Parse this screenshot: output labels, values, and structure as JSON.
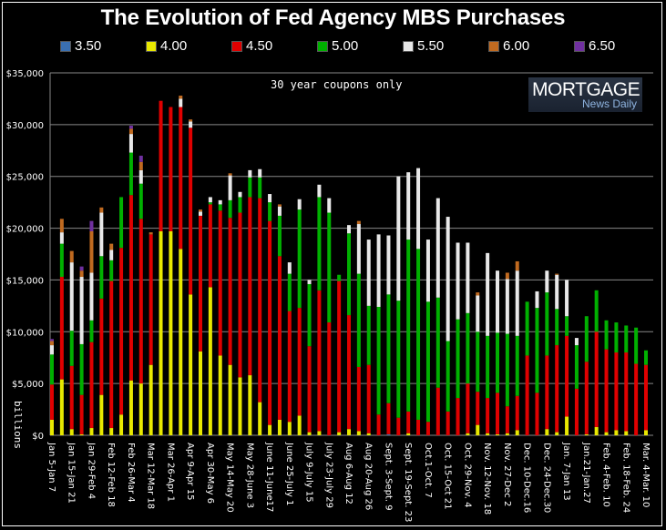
{
  "chart_data": {
    "type": "bar",
    "stacked": true,
    "title": "The Evolution of Fed Agency MBS Purchases",
    "annotation": "30 year coupons only",
    "watermark": {
      "main": "MORTGAGE",
      "sub": "News Daily"
    },
    "xlabel": "",
    "ylabel": "billions",
    "ylim": [
      0,
      35000
    ],
    "yticks": [
      "$0",
      "$5,000",
      "$10,000",
      "$15,000",
      "$20,000",
      "$25,000",
      "$30,000",
      "$35,000"
    ],
    "ytick_values": [
      0,
      5000,
      10000,
      15000,
      20000,
      25000,
      30000,
      35000
    ],
    "grid": true,
    "legend_position": "top",
    "colors": {
      "3.50": "#3a6fb0",
      "4.00": "#e8e800",
      "4.50": "#e00000",
      "5.00": "#00b000",
      "5.50": "#e8e8e8",
      "6.00": "#c06a20",
      "6.50": "#7030a0"
    },
    "series_names": [
      "3.50",
      "4.00",
      "4.50",
      "5.00",
      "5.50",
      "6.00",
      "6.50"
    ],
    "xtick_labels": [
      "Jan 5-Jan 7",
      "Jan 15-Jan 21",
      "Jan 29-Feb 4",
      "Feb 12-Feb 18",
      "Feb 26-Mar 4",
      "Mar 12-Mar 18",
      "Mar 26-Apr 1",
      "Apr 9-Apr 15",
      "Apr 30-May 6",
      "May 14-May 20",
      "May 28-June 3",
      "June 11-June17",
      "June 25-July 1",
      "July 9-July 15",
      "July 23-July 29",
      "Aug 6-Aug 12",
      "Aug 20-Aug 26",
      "Sept. 3-Sept. 9",
      "Sept. 19-Sept. 23",
      "Oct.1-Oct. 7",
      "Oct. 15-Oct 21",
      "Oct. 29-Nov. 4",
      "Nov. 12-Nov. 18",
      "Nov. 27-Dec 2",
      "Dec. 10-Dec.16",
      "Dec. 24-Dec.30",
      "Jan. 7-Jan 13",
      "Jan.21-Jan.27",
      "Feb. 4-Feb. 10",
      "Feb. 18-Feb. 24",
      "Mar. 4-Mar. 10"
    ],
    "bars": [
      [
        0,
        1500,
        3400,
        2900,
        900,
        400,
        200
      ],
      [
        0,
        5400,
        9900,
        3200,
        1100,
        1300,
        0
      ],
      [
        0,
        600,
        6100,
        3400,
        6600,
        1100,
        0
      ],
      [
        0,
        100,
        3800,
        4900,
        6500,
        600,
        400
      ],
      [
        0,
        700,
        8300,
        2100,
        4600,
        4000,
        1000
      ],
      [
        0,
        3900,
        9300,
        4100,
        4200,
        500,
        0
      ],
      [
        0,
        700,
        14200,
        2000,
        1000,
        600,
        0
      ],
      [
        0,
        2000,
        16100,
        4900,
        0,
        0,
        0
      ],
      [
        0,
        5300,
        17900,
        4100,
        1800,
        500,
        300
      ],
      [
        0,
        5000,
        15900,
        3400,
        1300,
        800,
        600
      ],
      [
        0,
        6800,
        12600,
        0,
        0,
        200,
        0
      ],
      [
        0,
        19700,
        12600,
        0,
        0,
        0,
        0
      ],
      [
        0,
        19700,
        12000,
        0,
        0,
        0,
        0
      ],
      [
        0,
        18000,
        13700,
        0,
        800,
        300,
        0
      ],
      [
        0,
        13600,
        16100,
        0,
        600,
        200,
        0
      ],
      [
        0,
        8100,
        13100,
        0,
        400,
        200,
        0
      ],
      [
        0,
        14300,
        8000,
        200,
        500,
        0,
        0
      ],
      [
        0,
        7700,
        14000,
        600,
        400,
        0,
        0
      ],
      [
        0,
        6800,
        14200,
        1700,
        2400,
        200,
        0
      ],
      [
        0,
        5600,
        15900,
        1500,
        500,
        0,
        0
      ],
      [
        0,
        5800,
        17200,
        1900,
        700,
        0,
        0
      ],
      [
        0,
        3200,
        19700,
        2000,
        800,
        0,
        0
      ],
      [
        0,
        1000,
        19700,
        1800,
        800,
        0,
        0
      ],
      [
        0,
        1500,
        15800,
        3900,
        900,
        200,
        0
      ],
      [
        0,
        1300,
        10700,
        3600,
        1100,
        0,
        0
      ],
      [
        0,
        1900,
        10400,
        9500,
        1000,
        0,
        0
      ],
      [
        0,
        300,
        8300,
        6000,
        400,
        0,
        0
      ],
      [
        0,
        400,
        13600,
        9000,
        1200,
        0,
        0
      ],
      [
        0,
        0,
        10900,
        10600,
        1400,
        0,
        0
      ],
      [
        0,
        300,
        14600,
        600,
        0,
        0,
        0
      ],
      [
        0,
        600,
        11000,
        7900,
        800,
        0,
        0
      ],
      [
        0,
        400,
        6200,
        9000,
        4800,
        300,
        0
      ],
      [
        0,
        200,
        6600,
        5700,
        6400,
        0,
        0
      ],
      [
        0,
        0,
        2000,
        10400,
        7000,
        0,
        0
      ],
      [
        100,
        0,
        3000,
        10500,
        5700,
        0,
        0
      ],
      [
        0,
        0,
        1700,
        11300,
        12000,
        0,
        0
      ],
      [
        0,
        200,
        2100,
        16600,
        6500,
        0,
        0
      ],
      [
        0,
        0,
        1500,
        16500,
        7800,
        0,
        0
      ],
      [
        0,
        0,
        1300,
        11600,
        6000,
        0,
        0
      ],
      [
        0,
        0,
        4600,
        8700,
        9600,
        0,
        0
      ],
      [
        0,
        0,
        2300,
        6800,
        12000,
        0,
        0
      ],
      [
        0,
        0,
        3600,
        7600,
        7400,
        0,
        0
      ],
      [
        0,
        200,
        4800,
        6800,
        6800,
        0,
        0
      ],
      [
        0,
        1000,
        3200,
        5800,
        3500,
        300,
        0
      ],
      [
        0,
        200,
        3400,
        6000,
        8000,
        0,
        0
      ],
      [
        0,
        100,
        4000,
        5800,
        6000,
        0,
        0
      ],
      [
        0,
        200,
        2600,
        7000,
        5300,
        600,
        0
      ],
      [
        0,
        500,
        3300,
        5800,
        6300,
        900,
        0
      ],
      [
        0,
        0,
        7700,
        5200,
        0,
        0,
        0
      ],
      [
        0,
        0,
        4100,
        8200,
        1600,
        0,
        0
      ],
      [
        0,
        600,
        7100,
        6100,
        2100,
        0,
        0
      ],
      [
        0,
        300,
        8400,
        3500,
        3300,
        100,
        0
      ],
      [
        0,
        1800,
        7800,
        1900,
        3500,
        0,
        0
      ],
      [
        0,
        0,
        4500,
        4200,
        700,
        0,
        0
      ],
      [
        0,
        100,
        7000,
        4400,
        0,
        0,
        0
      ],
      [
        0,
        800,
        9200,
        4000,
        0,
        0,
        0
      ],
      [
        0,
        300,
        8000,
        2800,
        0,
        0,
        0
      ],
      [
        0,
        500,
        7500,
        2900,
        0,
        0,
        0
      ],
      [
        0,
        400,
        7600,
        2600,
        0,
        0,
        0
      ],
      [
        0,
        0,
        6900,
        3500,
        0,
        0,
        0
      ],
      [
        0,
        500,
        6300,
        1400,
        0,
        0,
        0
      ]
    ]
  },
  "legend": [
    {
      "label": "3.50",
      "color": "#3a6fb0"
    },
    {
      "label": "4.00",
      "color": "#e8e800"
    },
    {
      "label": "4.50",
      "color": "#e00000"
    },
    {
      "label": "5.00",
      "color": "#00b000"
    },
    {
      "label": "5.50",
      "color": "#e8e8e8"
    },
    {
      "label": "6.00",
      "color": "#c06a20"
    },
    {
      "label": "6.50",
      "color": "#7030a0"
    }
  ]
}
